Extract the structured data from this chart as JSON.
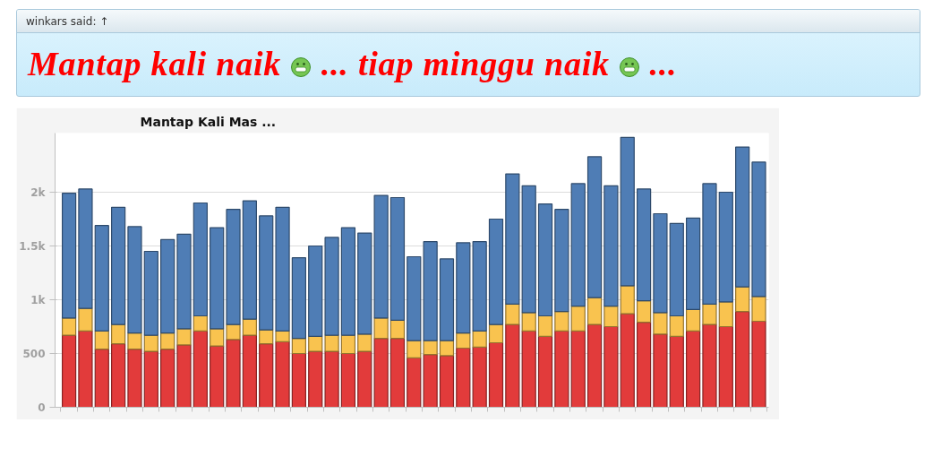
{
  "chart_data": {
    "type": "bar",
    "stacked": true,
    "title": "Mantap Kali Mas ...",
    "annotations": [
      "winkars said: ↑",
      "Mantap kali naik",
      "... tiap minggu naik",
      "..."
    ],
    "categories": [
      null,
      null,
      null,
      null,
      null,
      null,
      null,
      null,
      null,
      null,
      null,
      null,
      null,
      null,
      null,
      null,
      null,
      null,
      null,
      null,
      null,
      null,
      null,
      null,
      null,
      null,
      null,
      null,
      null,
      null,
      null,
      null,
      null,
      null,
      null,
      null,
      null,
      null,
      null,
      null,
      null,
      null,
      null
    ],
    "series": [
      {
        "color": "#e23b3b",
        "values": [
          670,
          710,
          540,
          590,
          540,
          520,
          540,
          580,
          710,
          570,
          630,
          670,
          590,
          610,
          500,
          520,
          520,
          500,
          520,
          640,
          640,
          460,
          490,
          480,
          550,
          560,
          600,
          770,
          710,
          660,
          710,
          710,
          770,
          750,
          870,
          790,
          680,
          660,
          710,
          770,
          750,
          890,
          800
        ]
      },
      {
        "color": "#f9c34f",
        "values": [
          160,
          210,
          170,
          180,
          150,
          150,
          150,
          150,
          140,
          160,
          140,
          150,
          130,
          100,
          140,
          140,
          150,
          170,
          160,
          190,
          170,
          160,
          130,
          140,
          140,
          150,
          170,
          190,
          170,
          190,
          180,
          230,
          250,
          190,
          260,
          200,
          200,
          190,
          200,
          190,
          230,
          230,
          230
        ]
      },
      {
        "color": "#4f7db5",
        "values": [
          1160,
          1110,
          980,
          1090,
          990,
          780,
          870,
          880,
          1050,
          940,
          1070,
          1100,
          1060,
          1150,
          750,
          840,
          910,
          1000,
          940,
          1140,
          1140,
          780,
          920,
          760,
          840,
          830,
          980,
          1210,
          1180,
          1040,
          950,
          1140,
          1310,
          1120,
          1380,
          1040,
          920,
          860,
          850,
          1120,
          1020,
          1300,
          1250
        ]
      }
    ],
    "ylim": [
      0,
      2550
    ],
    "yticks": [
      0,
      500,
      {
        "value": 1000,
        "label": "1k"
      },
      {
        "value": 1500,
        "label": "1.5k"
      },
      {
        "value": 2000,
        "label": "2k"
      }
    ],
    "grid": "y",
    "tick_labels": "y"
  }
}
